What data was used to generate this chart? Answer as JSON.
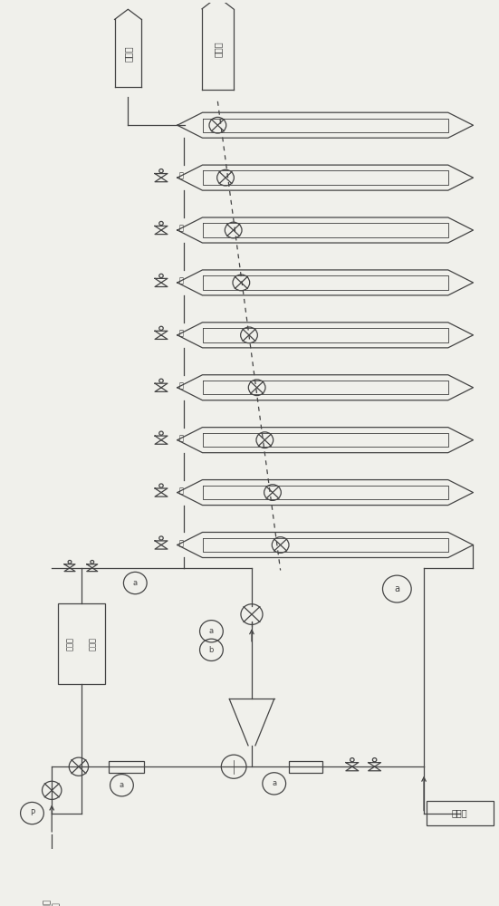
{
  "bg_color": "#f0f0eb",
  "line_color": "#444444",
  "text_color": "#333333",
  "num_heat_exchangers": 9,
  "tank1_label": "闪冷罐",
  "tank2_label": "闪冷罐",
  "bottom_left_label1": "加热器",
  "bottom_left_label2": "气回罐",
  "bottom_right_label": "形色主",
  "bottom_feed_label1": "原料健",
  "bottom_feed_label2": "花罐"
}
